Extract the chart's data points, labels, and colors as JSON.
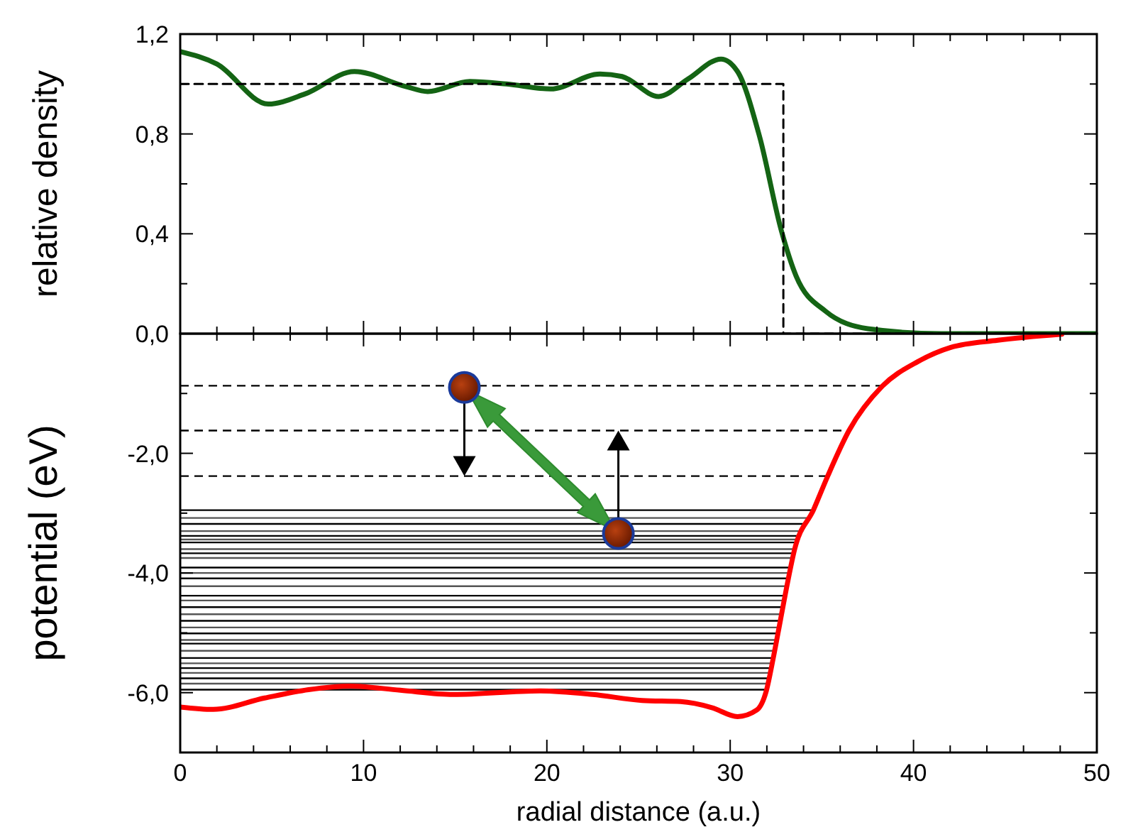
{
  "chart_data": [
    {
      "type": "line",
      "ylabel": "relative density",
      "xlim": [
        0,
        50
      ],
      "ylim": [
        0,
        1.2
      ],
      "tick_labels": "y",
      "xticks": [
        0,
        {
          "value": 2,
          "label": null
        },
        {
          "value": 4,
          "label": null
        },
        {
          "value": 6,
          "label": null
        },
        {
          "value": 8,
          "label": null
        },
        10,
        {
          "value": 12,
          "label": null
        },
        {
          "value": 14,
          "label": null
        },
        {
          "value": 16,
          "label": null
        },
        {
          "value": 18,
          "label": null
        },
        20,
        {
          "value": 22,
          "label": null
        },
        {
          "value": 24,
          "label": null
        },
        {
          "value": 26,
          "label": null
        },
        {
          "value": 28,
          "label": null
        },
        30,
        {
          "value": 32,
          "label": null
        },
        {
          "value": 34,
          "label": null
        },
        {
          "value": 36,
          "label": null
        },
        {
          "value": 38,
          "label": null
        },
        40,
        {
          "value": 42,
          "label": null
        },
        {
          "value": 44,
          "label": null
        },
        {
          "value": 46,
          "label": null
        },
        {
          "value": 48,
          "label": null
        },
        50
      ],
      "yticks": [
        {
          "value": 0,
          "label": "0,0"
        },
        {
          "value": 0.2,
          "label": null
        },
        {
          "value": 0.4,
          "label": "0,4"
        },
        {
          "value": 0.6,
          "label": null
        },
        {
          "value": 0.8,
          "label": "0,8"
        },
        {
          "value": 1.0,
          "label": null
        },
        {
          "value": 1.2,
          "label": "1,2"
        }
      ],
      "series": [
        {
          "color": "#146414",
          "x": [
            0,
            2,
            4.8,
            6.8,
            9.5,
            12.3,
            13.5,
            15.8,
            17.8,
            20.2,
            22.9,
            24.1,
            26.1,
            27.7,
            29.5,
            30.4,
            31.6,
            32.8,
            33.6,
            35.2,
            37.5,
            41.5,
            50
          ],
          "values": [
            1.13,
            1.08,
            0.92,
            0.96,
            1.05,
            0.99,
            0.97,
            1.01,
            1.0,
            0.98,
            1.04,
            1.03,
            0.95,
            1.02,
            1.1,
            1.05,
            0.79,
            0.41,
            0.23,
            0.09,
            0.02,
            0,
            0
          ]
        },
        {
          "type": "step",
          "color": "#000000",
          "line_style": "dashed",
          "x": [
            0,
            32.9,
            50
          ],
          "values": [
            1,
            0,
            0
          ]
        }
      ]
    },
    {
      "type": "line",
      "xlabel": "radial distance (a.u.)",
      "ylabel": "potential (eV)",
      "xlim": [
        0,
        50
      ],
      "ylim": [
        -7,
        0
      ],
      "xticks": [
        0,
        {
          "value": 2,
          "label": null
        },
        {
          "value": 4,
          "label": null
        },
        {
          "value": 6,
          "label": null
        },
        {
          "value": 8,
          "label": null
        },
        10,
        {
          "value": 12,
          "label": null
        },
        {
          "value": 14,
          "label": null
        },
        {
          "value": 16,
          "label": null
        },
        {
          "value": 18,
          "label": null
        },
        20,
        {
          "value": 22,
          "label": null
        },
        {
          "value": 24,
          "label": null
        },
        {
          "value": 26,
          "label": null
        },
        {
          "value": 28,
          "label": null
        },
        30,
        {
          "value": 32,
          "label": null
        },
        {
          "value": 34,
          "label": null
        },
        {
          "value": 36,
          "label": null
        },
        {
          "value": 38,
          "label": null
        },
        40,
        {
          "value": 42,
          "label": null
        },
        {
          "value": 44,
          "label": null
        },
        {
          "value": 46,
          "label": null
        },
        {
          "value": 48,
          "label": null
        },
        50
      ],
      "yticks": [
        {
          "value": -1,
          "label": null
        },
        {
          "value": -2,
          "label": "-2,0"
        },
        {
          "value": -3,
          "label": null
        },
        {
          "value": -4,
          "label": "-4,0"
        },
        {
          "value": -5,
          "label": null
        },
        {
          "value": -6,
          "label": "-6,0"
        }
      ],
      "series": [
        {
          "color": "#ff0000",
          "x": [
            0,
            1.8,
            4.6,
            7,
            9.3,
            12,
            14.9,
            19.6,
            22.5,
            25.2,
            27.3,
            29,
            30.4,
            31.45,
            31.97,
            32.35,
            32.74,
            33.13,
            33.51,
            34.55,
            35.32,
            36.48,
            38.29,
            40.22,
            42.03,
            44.6,
            48.09
          ],
          "values": [
            -6.24,
            -6.28,
            -6.09,
            -5.95,
            -5.89,
            -5.96,
            -6.03,
            -5.97,
            -6.03,
            -6.13,
            -6.15,
            -6.25,
            -6.4,
            -6.29,
            -5.97,
            -5.42,
            -4.79,
            -4.16,
            -3.61,
            -2.94,
            -2.38,
            -1.62,
            -0.88,
            -0.47,
            -0.23,
            -0.11,
            -0.01
          ]
        }
      ],
      "ref_lines": [
        {
          "axis": "y",
          "value": -0.87,
          "line_style": "dashed",
          "color": "#000000"
        },
        {
          "axis": "y",
          "value": -1.62,
          "line_style": "dashed",
          "color": "#000000"
        },
        {
          "axis": "y",
          "value": -2.38,
          "line_style": "dashed",
          "color": "#000000"
        },
        {
          "axis": "y",
          "value": -2.95,
          "color": "#000000"
        },
        {
          "axis": "y",
          "value": -3.08,
          "color": "#555555"
        },
        {
          "axis": "y",
          "value": -3.18,
          "color": "#000000"
        },
        {
          "axis": "y",
          "value": -3.3,
          "color": "#555555"
        },
        {
          "axis": "y",
          "value": -3.38,
          "color": "#000000"
        },
        {
          "axis": "y",
          "value": -3.44,
          "color": "#555555"
        },
        {
          "axis": "y",
          "value": -3.49,
          "color": "#000000"
        },
        {
          "axis": "y",
          "value": -3.6,
          "color": "#555555"
        },
        {
          "axis": "y",
          "value": -3.67,
          "color": "#000000"
        },
        {
          "axis": "y",
          "value": -3.75,
          "color": "#555555"
        },
        {
          "axis": "y",
          "value": -3.91,
          "color": "#000000"
        },
        {
          "axis": "y",
          "value": -4.0,
          "color": "#555555"
        },
        {
          "axis": "y",
          "value": -4.09,
          "color": "#000000"
        },
        {
          "axis": "y",
          "value": -4.22,
          "color": "#555555"
        },
        {
          "axis": "y",
          "value": -4.38,
          "color": "#000000"
        },
        {
          "axis": "y",
          "value": -4.46,
          "color": "#555555"
        },
        {
          "axis": "y",
          "value": -4.57,
          "color": "#000000"
        },
        {
          "axis": "y",
          "value": -4.69,
          "color": "#555555"
        },
        {
          "axis": "y",
          "value": -4.8,
          "color": "#000000"
        },
        {
          "axis": "y",
          "value": -4.91,
          "color": "#555555"
        },
        {
          "axis": "y",
          "value": -5.01,
          "color": "#000000"
        },
        {
          "axis": "y",
          "value": -5.12,
          "color": "#555555"
        },
        {
          "axis": "y",
          "value": -5.18,
          "color": "#000000"
        },
        {
          "axis": "y",
          "value": -5.3,
          "color": "#555555"
        },
        {
          "axis": "y",
          "value": -5.42,
          "color": "#000000"
        },
        {
          "axis": "y",
          "value": -5.51,
          "color": "#555555"
        },
        {
          "axis": "y",
          "value": -5.59,
          "color": "#000000"
        },
        {
          "axis": "y",
          "value": -5.67,
          "color": "#555555"
        },
        {
          "axis": "y",
          "value": -5.76,
          "color": "#000000"
        },
        {
          "axis": "y",
          "value": -5.85,
          "color": "#555555"
        },
        {
          "axis": "y",
          "value": -5.95,
          "color": "#000000"
        }
      ]
    }
  ]
}
